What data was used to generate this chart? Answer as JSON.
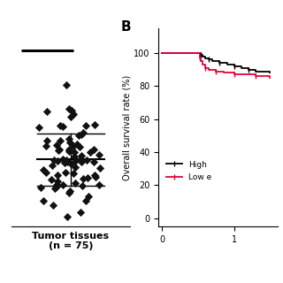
{
  "panel_a": {
    "xlabel": "Tumor tissues\n(n = 75)",
    "n_dots": 75,
    "top_line_y": 1.02,
    "top_line_x": [
      0.08,
      0.52
    ],
    "ylim": [
      0,
      1.15
    ],
    "xlim": [
      0.0,
      1.0
    ]
  },
  "panel_b": {
    "label": "B",
    "ylabel": "Overall survival rate (%)",
    "yticks": [
      0,
      20,
      40,
      60,
      80,
      100
    ],
    "xticks": [
      0,
      1
    ],
    "xlim": [
      -0.05,
      1.6
    ],
    "ylim": [
      -5,
      115
    ],
    "high_color": "#000000",
    "low_color": "#e8003d",
    "legend_high": "High",
    "legend_low": "Low e",
    "high_x": [
      0,
      0.52,
      0.54,
      0.56,
      0.6,
      0.65,
      0.7,
      0.8,
      0.9,
      1.0,
      1.1,
      1.2,
      1.3,
      1.5
    ],
    "high_y": [
      100,
      100,
      99,
      98,
      97,
      96,
      95,
      94,
      93,
      92,
      91,
      90,
      89,
      88
    ],
    "low_x": [
      0,
      0.5,
      0.52,
      0.54,
      0.56,
      0.6,
      0.65,
      0.75,
      0.85,
      1.0,
      1.3,
      1.5
    ],
    "low_y": [
      100,
      100,
      97,
      95,
      93,
      91,
      90,
      89,
      88,
      87,
      86,
      85
    ],
    "census_high_x": [
      0.54,
      0.65,
      0.8,
      1.0,
      1.2
    ],
    "census_high_y": [
      99,
      96,
      94,
      92,
      90
    ],
    "census_low_x": [
      0.52,
      0.6,
      0.75,
      1.0,
      1.3
    ],
    "census_low_y": [
      97,
      91,
      89,
      87,
      86
    ]
  },
  "background_color": "#ffffff",
  "dot_color": "#111111",
  "dot_marker": "D"
}
